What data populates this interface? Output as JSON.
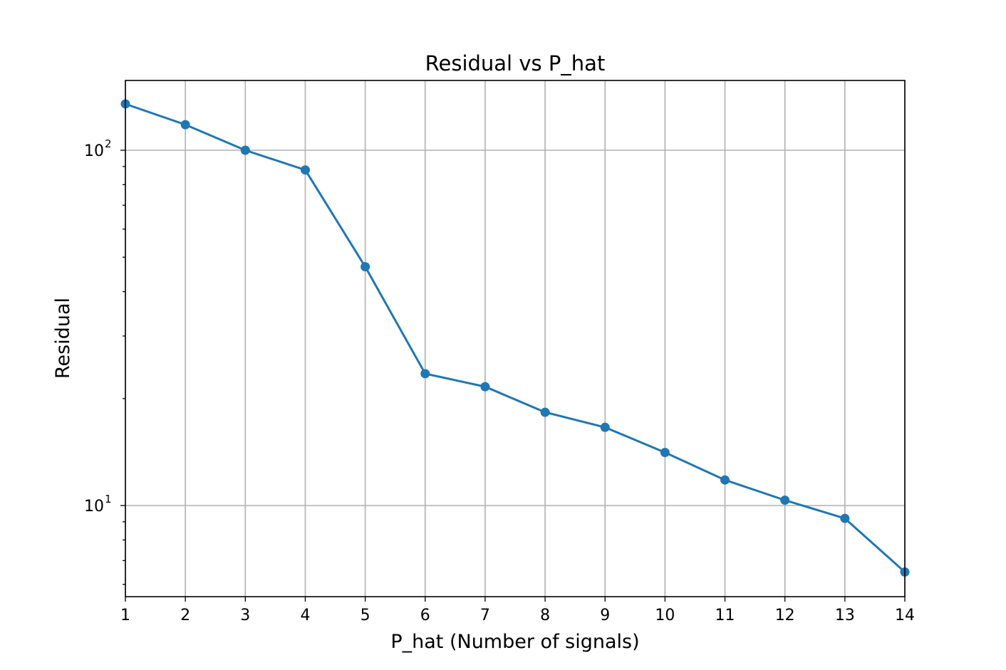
{
  "chart_data": {
    "type": "line",
    "title": "Residual vs P_hat",
    "xlabel": "P_hat (Number of signals)",
    "ylabel": "Residual",
    "x": [
      1,
      2,
      3,
      4,
      5,
      6,
      7,
      8,
      9,
      10,
      11,
      12,
      13,
      14
    ],
    "series": [
      {
        "values": [
          135,
          118,
          100,
          88,
          47,
          23.5,
          21.6,
          18.3,
          16.6,
          14.1,
          11.8,
          10.35,
          9.2,
          6.5
        ]
      }
    ],
    "xlim": [
      1,
      14
    ],
    "ylim": [
      5.6,
      160
    ],
    "y_scale": "log",
    "x_ticks": [
      "1",
      "2",
      "3",
      "4",
      "5",
      "6",
      "7",
      "8",
      "9",
      "10",
      "11",
      "12",
      "13",
      "14"
    ],
    "y_ticks": [
      {
        "value": 10,
        "base": "10",
        "exponent": "1"
      },
      {
        "value": 100,
        "base": "10",
        "exponent": "2"
      }
    ],
    "grid": true,
    "line_color": "#1f77b4",
    "marker": "circle"
  }
}
